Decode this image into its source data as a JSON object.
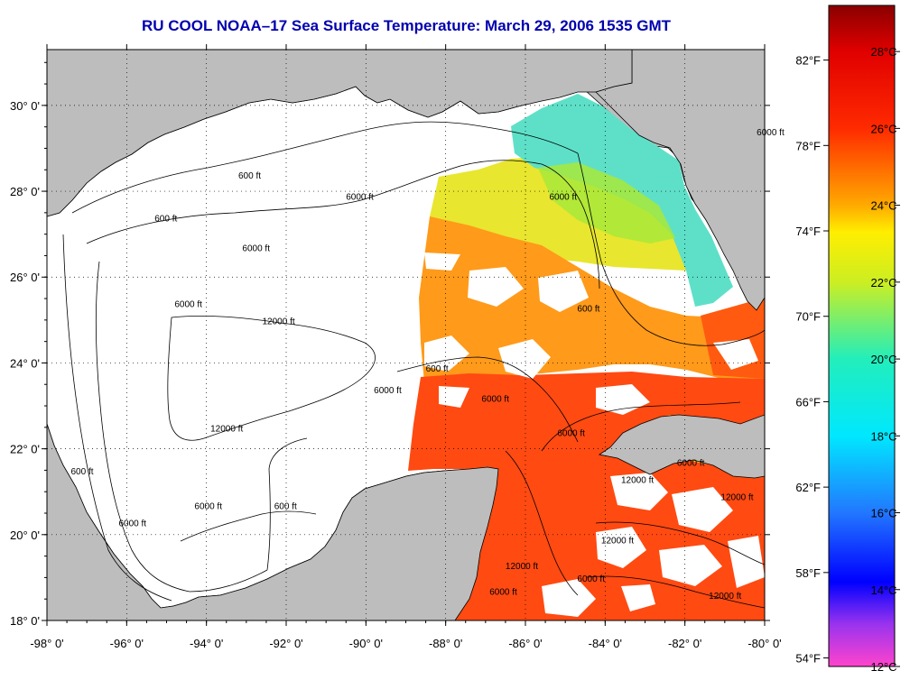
{
  "title": "RU COOL  NOAA–17  Sea Surface Temperature:  March 29, 2006 1535 GMT",
  "axes": {
    "lon_labels": [
      "-98° 0'",
      "-96° 0'",
      "-94° 0'",
      "-92° 0'",
      "-90° 0'",
      "-88° 0'",
      "-86° 0'",
      "-84° 0'",
      "-82° 0'",
      "-80° 0'"
    ],
    "lat_labels": [
      "30° 0'",
      "28° 0'",
      "26° 0'",
      "24° 0'",
      "22° 0'",
      "20° 0'",
      "18° 0'"
    ],
    "lon_range": [
      -98,
      -80
    ],
    "lat_range": [
      18,
      31.3
    ],
    "grid": "dotted"
  },
  "colorbar": {
    "celsius_labels": [
      "28°C",
      "26°C",
      "24°C",
      "22°C",
      "20°C",
      "18°C",
      "16°C",
      "14°C",
      "12°C"
    ],
    "fahrenheit_labels": [
      "82°F",
      "78°F",
      "74°F",
      "70°F",
      "66°F",
      "62°F",
      "58°F",
      "54°F"
    ],
    "celsius_values": [
      28,
      26,
      24,
      22,
      20,
      18,
      16,
      14,
      12
    ],
    "fahrenheit_values": [
      82,
      78,
      74,
      70,
      66,
      62,
      58,
      54
    ],
    "range_c": [
      12,
      29.2
    ],
    "stops": [
      {
        "value": 12.0,
        "color": "#ff44cc"
      },
      {
        "value": 13.1,
        "color": "#9933ee"
      },
      {
        "value": 14.2,
        "color": "#0000ff"
      },
      {
        "value": 16.0,
        "color": "#2277ff"
      },
      {
        "value": 18.0,
        "color": "#00e8ff"
      },
      {
        "value": 20.0,
        "color": "#22eebb"
      },
      {
        "value": 22.0,
        "color": "#ccee22"
      },
      {
        "value": 23.3,
        "color": "#ffee00"
      },
      {
        "value": 24.0,
        "color": "#ffaa00"
      },
      {
        "value": 26.0,
        "color": "#ff2a00"
      },
      {
        "value": 28.0,
        "color": "#e00000"
      },
      {
        "value": 29.2,
        "color": "#8a0000"
      }
    ]
  },
  "isobaths": [
    {
      "label": "600 ft",
      "lon": -93.2,
      "lat": 28.3
    },
    {
      "label": "600 ft",
      "lon": -95.3,
      "lat": 27.3
    },
    {
      "label": "6000 ft",
      "lon": -90.5,
      "lat": 27.8
    },
    {
      "label": "6000 ft",
      "lon": -93.1,
      "lat": 26.6
    },
    {
      "label": "6000 ft",
      "lon": -94.8,
      "lat": 25.3
    },
    {
      "label": "12000 ft",
      "lon": -92.6,
      "lat": 24.9
    },
    {
      "label": "12000 ft",
      "lon": -93.9,
      "lat": 22.4
    },
    {
      "label": "6000 ft",
      "lon": -89.8,
      "lat": 23.3
    },
    {
      "label": "600 ft",
      "lon": -88.5,
      "lat": 23.8
    },
    {
      "label": "6000 ft",
      "lon": -87.1,
      "lat": 23.1
    },
    {
      "label": "6000 ft",
      "lon": -85.4,
      "lat": 27.8
    },
    {
      "label": "600 ft",
      "lon": -84.7,
      "lat": 25.2
    },
    {
      "label": "6000 ft",
      "lon": -85.2,
      "lat": 22.3
    },
    {
      "label": "600 ft",
      "lon": -97.4,
      "lat": 21.4
    },
    {
      "label": "6000 ft",
      "lon": -96.2,
      "lat": 20.2
    },
    {
      "label": "6000 ft",
      "lon": -94.3,
      "lat": 20.6
    },
    {
      "label": "600 ft",
      "lon": -92.3,
      "lat": 20.6
    },
    {
      "label": "12000 ft",
      "lon": -83.6,
      "lat": 21.2
    },
    {
      "label": "12000 ft",
      "lon": -84.1,
      "lat": 19.8
    },
    {
      "label": "6000 ft",
      "lon": -84.7,
      "lat": 18.9
    },
    {
      "label": "6000 ft",
      "lon": -82.2,
      "lat": 21.6
    },
    {
      "label": "12000 ft",
      "lon": -81.1,
      "lat": 20.8
    },
    {
      "label": "12000 ft",
      "lon": -81.4,
      "lat": 18.5
    },
    {
      "label": "6000 ft",
      "lon": -86.9,
      "lat": 18.6
    },
    {
      "label": "12000 ft",
      "lon": -86.5,
      "lat": 19.2
    },
    {
      "label": "6000 ft",
      "lon": -80.2,
      "lat": 29.3
    }
  ]
}
